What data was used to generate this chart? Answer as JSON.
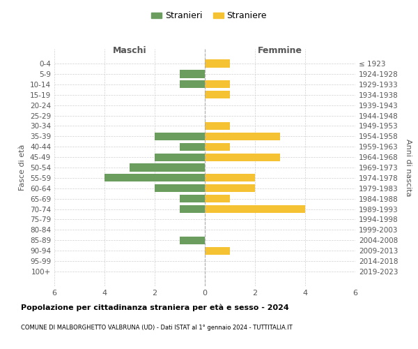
{
  "age_groups": [
    "0-4",
    "5-9",
    "10-14",
    "15-19",
    "20-24",
    "25-29",
    "30-34",
    "35-39",
    "40-44",
    "45-49",
    "50-54",
    "55-59",
    "60-64",
    "65-69",
    "70-74",
    "75-79",
    "80-84",
    "85-89",
    "90-94",
    "95-99",
    "100+"
  ],
  "birth_years": [
    "2019-2023",
    "2014-2018",
    "2009-2013",
    "2004-2008",
    "1999-2003",
    "1994-1998",
    "1989-1993",
    "1984-1988",
    "1979-1983",
    "1974-1978",
    "1969-1973",
    "1964-1968",
    "1959-1963",
    "1954-1958",
    "1949-1953",
    "1944-1948",
    "1939-1943",
    "1934-1938",
    "1929-1933",
    "1924-1928",
    "≤ 1923"
  ],
  "maschi": [
    0,
    1,
    1,
    0,
    0,
    0,
    0,
    2,
    1,
    2,
    3,
    4,
    2,
    1,
    1,
    0,
    0,
    1,
    0,
    0,
    0
  ],
  "femmine": [
    1,
    0,
    1,
    1,
    0,
    0,
    1,
    3,
    1,
    3,
    0,
    2,
    2,
    1,
    4,
    0,
    0,
    0,
    1,
    0,
    0
  ],
  "color_maschi": "#6b9e5e",
  "color_femmine": "#f5c234",
  "background_color": "#ffffff",
  "grid_color": "#d0d0d0",
  "title": "Popolazione per cittadinanza straniera per età e sesso - 2024",
  "subtitle": "COMUNE DI MALBORGHETTO VALBRUNA (UD) - Dati ISTAT al 1° gennaio 2024 - TUTTITALIA.IT",
  "xlabel_left": "Maschi",
  "xlabel_right": "Femmine",
  "ylabel_left": "Fasce di età",
  "ylabel_right": "Anni di nascita",
  "legend_stranieri": "Stranieri",
  "legend_straniere": "Straniere",
  "xlim": 6
}
